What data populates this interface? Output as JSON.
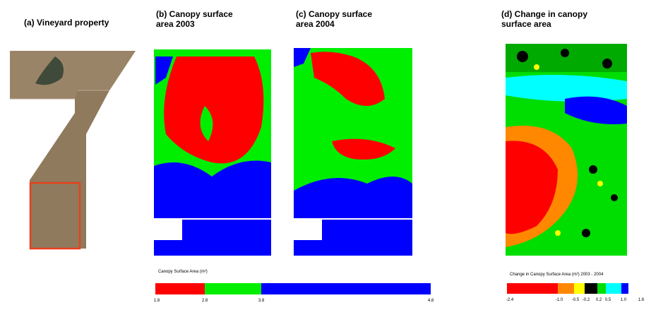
{
  "panels": [
    {
      "title": [
        "(a) Vineyard property"
      ]
    },
    {
      "title": [
        "(b) Canopy surface",
        "area 2003"
      ]
    },
    {
      "title": [
        "(c) Canopy surface",
        " area 2004"
      ]
    },
    {
      "title": [
        "(d) Change in canopy",
        "surface area"
      ]
    }
  ],
  "legends": [
    {
      "title": "Canopy Surface Area (m²)",
      "colors": [
        "#ff0000",
        "#00ee00",
        "#0000ff"
      ],
      "ticks": [
        "1.8",
        "2.8",
        "3.8",
        "4.8"
      ]
    },
    {
      "title": "Change in Canopy Surface Area (m²) 2003 - 2004",
      "colors": [
        "#ff0000",
        "#ff8800",
        "#ffff00",
        "#000000",
        "#00dd00",
        "#00ffff",
        "#0000ff"
      ],
      "ticks": [
        "-2.4",
        "-1.0",
        "-0.5",
        "-0.2",
        "0.2",
        "0.5",
        "1.0",
        "1.6"
      ]
    }
  ]
}
